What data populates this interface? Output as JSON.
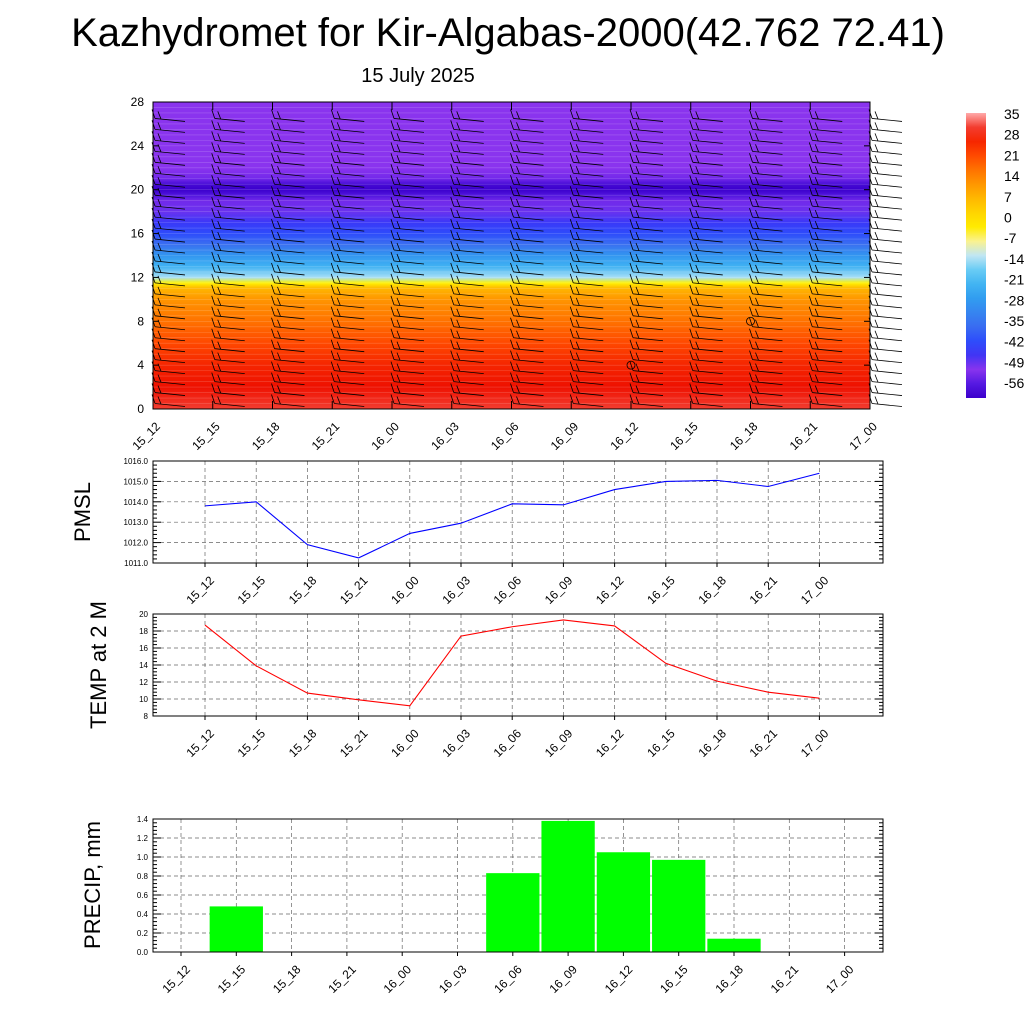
{
  "title": "Kazhydromet for Kir-Algabas-2000(42.762 72.41)",
  "subtitle": "15 July 2025",
  "chart_data": [
    {
      "type": "heatmap",
      "name": "vertical-section",
      "x_categories": [
        "15_12",
        "15_15",
        "15_18",
        "15_21",
        "16_00",
        "16_03",
        "16_06",
        "16_09",
        "16_12",
        "16_15",
        "16_18",
        "16_21",
        "17_00"
      ],
      "y_ticks": [
        "0",
        "4",
        "8",
        "12",
        "16",
        "20",
        "24",
        "28"
      ],
      "ylim": [
        0,
        28
      ],
      "colorbar_labels": [
        "35",
        "28",
        "21",
        "14",
        "7",
        "0",
        "-7",
        "-14",
        "-21",
        "-28",
        "-35",
        "-42",
        "-49",
        "-56"
      ],
      "profile_height": [
        0,
        2,
        4,
        6,
        8,
        10,
        11,
        11.5,
        12,
        13,
        14,
        15,
        16,
        17,
        18,
        19,
        19.5,
        20,
        20.5,
        21,
        22,
        23,
        24,
        26,
        28
      ],
      "profile_temp": [
        30,
        28,
        25,
        20,
        15,
        10,
        5,
        -7,
        -17,
        -26,
        -32,
        -40,
        -46,
        -50,
        -54,
        -58,
        -62,
        -66,
        -64,
        -58,
        -56,
        -56,
        -56,
        -56,
        -56
      ],
      "barbs": "wind-barbs"
    },
    {
      "type": "line",
      "name": "pmsl",
      "ylabel": "PMSL",
      "categories": [
        "15_12",
        "15_15",
        "15_18",
        "15_21",
        "16_00",
        "16_03",
        "16_06",
        "16_09",
        "16_12",
        "16_15",
        "16_18",
        "16_21",
        "17_00"
      ],
      "values": [
        1013.8,
        1014.0,
        1011.9,
        1011.25,
        1012.45,
        1012.95,
        1013.9,
        1013.85,
        1014.6,
        1015.0,
        1015.05,
        1014.75,
        1015.4
      ],
      "ylim": [
        1011.0,
        1016.0
      ],
      "y_ticks": [
        "1011.0",
        "1012.0",
        "1013.0",
        "1014.0",
        "1015.0",
        "1016.0"
      ],
      "color": "#0000ff",
      "grid": true
    },
    {
      "type": "line",
      "name": "temp",
      "ylabel": "TEMP at 2 M",
      "categories": [
        "15_12",
        "15_15",
        "15_18",
        "15_21",
        "16_00",
        "16_03",
        "16_06",
        "16_09",
        "16_12",
        "16_15",
        "16_18",
        "16_21",
        "17_00"
      ],
      "values": [
        18.7,
        13.9,
        10.7,
        9.9,
        9.2,
        17.4,
        18.5,
        19.3,
        18.6,
        14.2,
        12.1,
        10.8,
        10.1
      ],
      "ylim": [
        8,
        20
      ],
      "y_ticks": [
        "8",
        "10",
        "12",
        "14",
        "16",
        "18",
        "20"
      ],
      "color": "#ff0000",
      "grid": true
    },
    {
      "type": "bar",
      "name": "precip",
      "ylabel": "PRECIP, mm",
      "categories": [
        "15_12",
        "15_15",
        "15_18",
        "15_21",
        "16_00",
        "16_03",
        "16_06",
        "16_09",
        "16_12",
        "16_15",
        "16_18",
        "16_21",
        "17_00"
      ],
      "values": [
        0,
        0.48,
        0,
        0,
        0,
        0,
        0.83,
        1.38,
        1.05,
        0.97,
        0.14,
        0,
        0
      ],
      "ylim": [
        0,
        1.4
      ],
      "y_ticks": [
        "0.0",
        "0.2",
        "0.4",
        "0.6",
        "0.8",
        "1.0",
        "1.2",
        "1.4"
      ],
      "color": "#00ff00",
      "grid": true
    }
  ]
}
